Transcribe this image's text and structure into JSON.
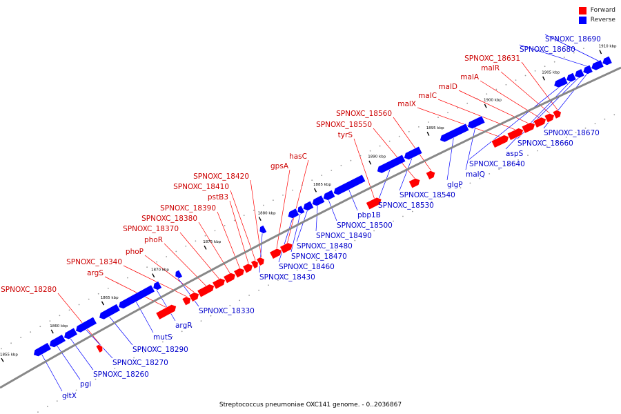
{
  "legend": {
    "forward_label": "Forward",
    "reverse_label": "Reverse"
  },
  "colors": {
    "forward": "#ff0000",
    "reverse": "#0000ff",
    "forward_label": "#cc0000",
    "reverse_label": "#0000cc",
    "backbone": "#888888"
  },
  "caption": "Streptococcus pneumoniae OXC141 genome. - 0..2036867",
  "scale_labels": [
    "1855 kbp",
    "1860 kbp",
    "1865 kbp",
    "1870 kbp",
    "1875 kbp",
    "1880 kbp",
    "1885 kbp",
    "1890 kbp",
    "1895 kbp",
    "1900 kbp",
    "1905 kbp",
    "1910 kbp"
  ],
  "forward_genes": [
    "SPNOXC_18280",
    "argS",
    "SPNOXC_18340",
    "phoP",
    "phoR",
    "SPNOXC_18370",
    "SPNOXC_18380",
    "SPNOXC_18390",
    "pstB3",
    "SPNOXC_18410",
    "SPNOXC_18420",
    "gpsA",
    "hasC",
    "tyrS",
    "SPNOXC_18550",
    "SPNOXC_18560",
    "malX",
    "malC",
    "malD",
    "malA",
    "malR",
    "SPNOXC_18631"
  ],
  "reverse_genes": [
    "gltX",
    "pgi",
    "SPNOXC_18260",
    "SPNOXC_18270",
    "SPNOXC_18290",
    "mutS",
    "argR",
    "SPNOXC_18330",
    "SPNOXC_18430",
    "SPNOXC_18460",
    "SPNOXC_18470",
    "SPNOXC_18480",
    "SPNOXC_18490",
    "SPNOXC_18500",
    "pbp1B",
    "SPNOXC_18530",
    "SPNOXC_18540",
    "glgP",
    "malQ",
    "SPNOXC_18640",
    "aspS",
    "SPNOXC_18660",
    "SPNOXC_18670",
    "SPNOXC_18680",
    "SPNOXC_18690"
  ]
}
